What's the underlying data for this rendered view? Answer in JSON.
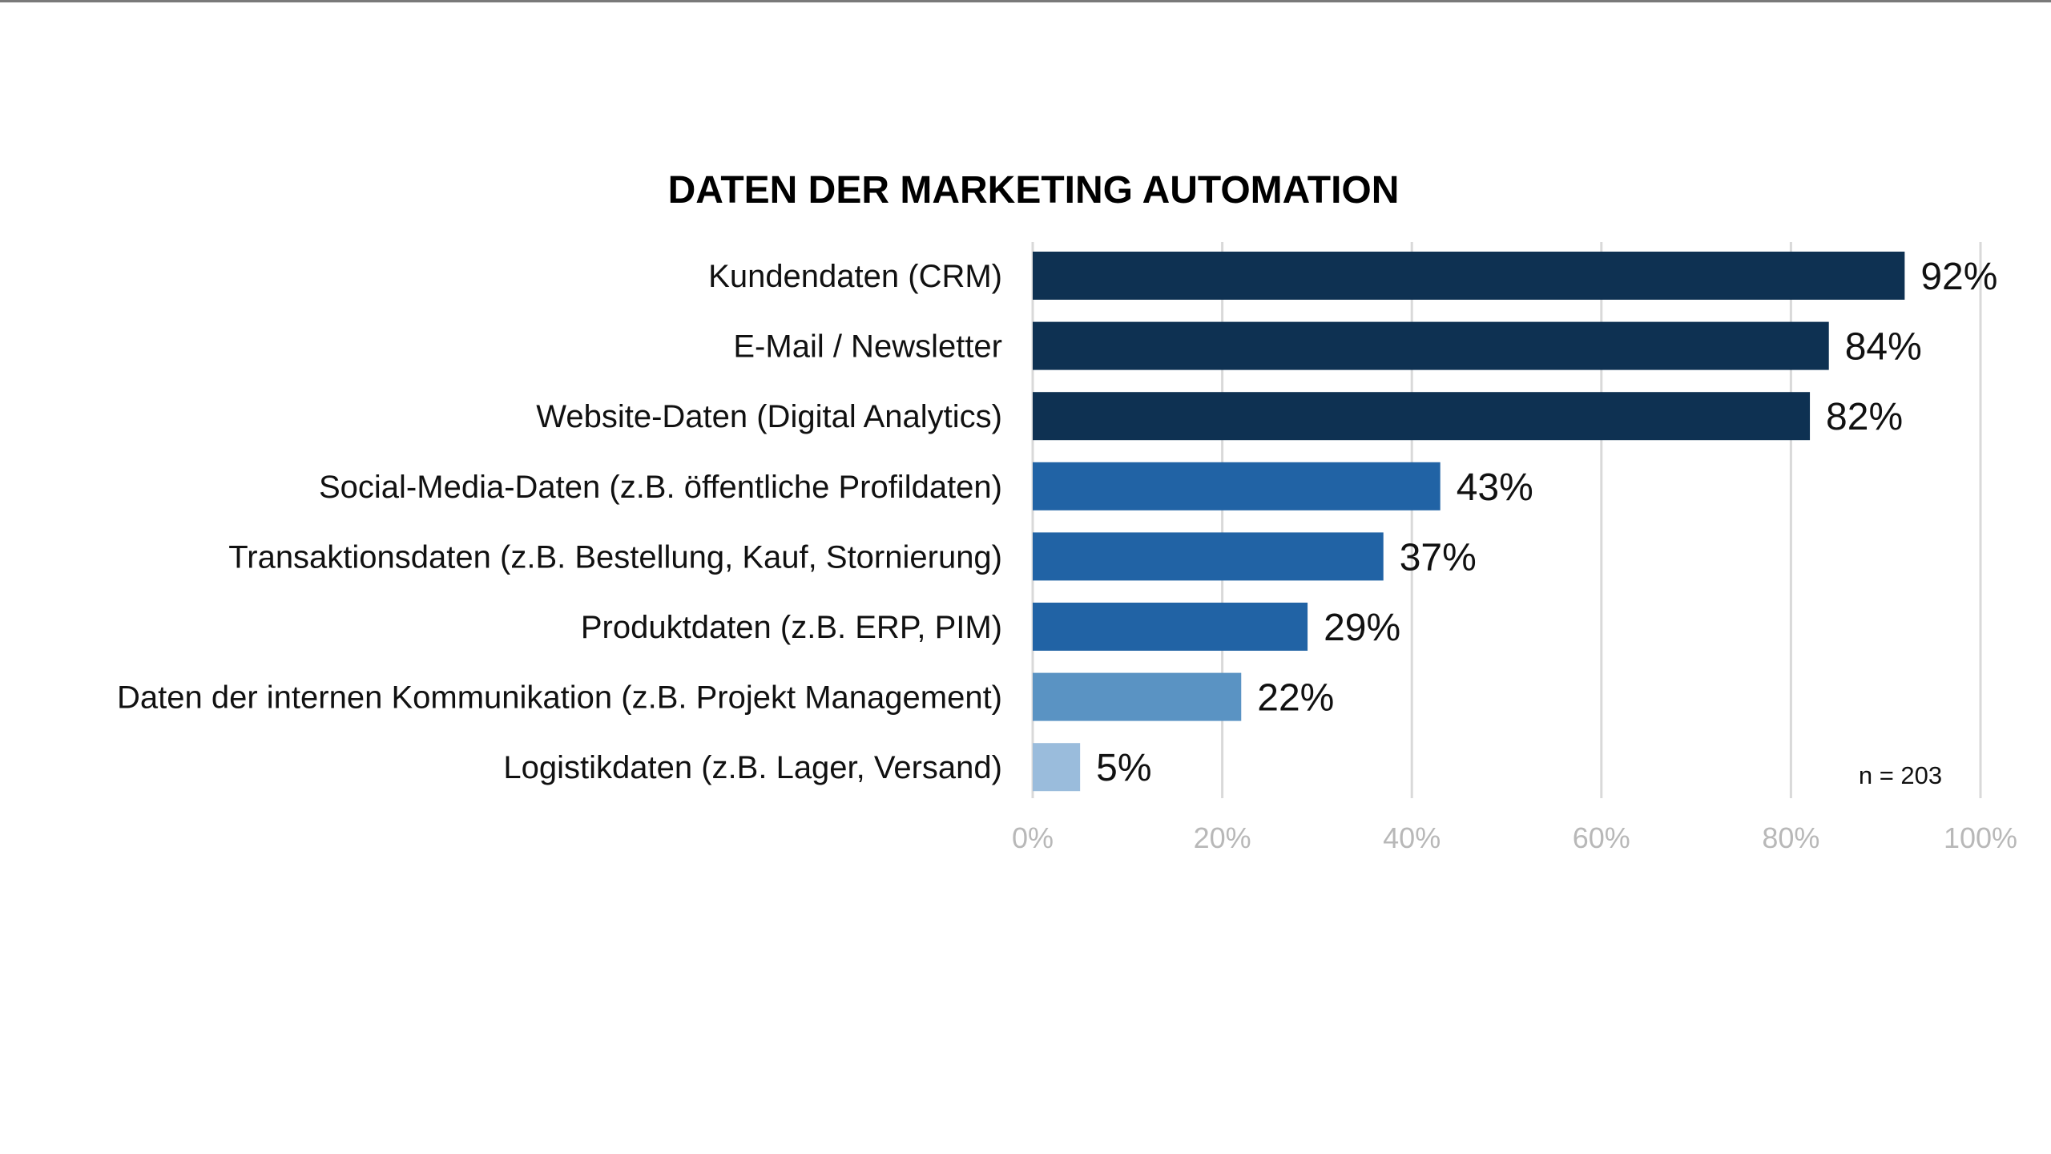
{
  "chart_data": {
    "type": "bar",
    "orientation": "horizontal",
    "title": "DATEN DER MARKETING AUTOMATION",
    "categories": [
      "Kundendaten (CRM)",
      "E-Mail / Newsletter",
      "Website-Daten (Digital Analytics)",
      "Social-Media-Daten (z.B. öffentliche Profildaten)",
      "Transaktionsdaten (z.B. Bestellung, Kauf, Stornierung)",
      "Produktdaten (z.B. ERP, PIM)",
      "Daten der internen Kommunikation (z.B. Projekt Management)",
      "Logistikdaten (z.B. Lager, Versand)"
    ],
    "values": [
      92,
      84,
      82,
      43,
      37,
      29,
      22,
      5
    ],
    "value_labels": [
      "92%",
      "84%",
      "82%",
      "43%",
      "37%",
      "29%",
      "22%",
      "5%"
    ],
    "bar_colors": [
      "#0e3152",
      "#0e3152",
      "#0e3152",
      "#2163a5",
      "#2163a5",
      "#2163a5",
      "#5a93c3",
      "#9abcdc"
    ],
    "xlim": [
      0,
      100
    ],
    "x_ticks": [
      "0%",
      "20%",
      "40%",
      "60%",
      "80%",
      "100%"
    ],
    "grid": "vertical",
    "xlabel": "",
    "ylabel": "",
    "annotation": "n = 203"
  }
}
